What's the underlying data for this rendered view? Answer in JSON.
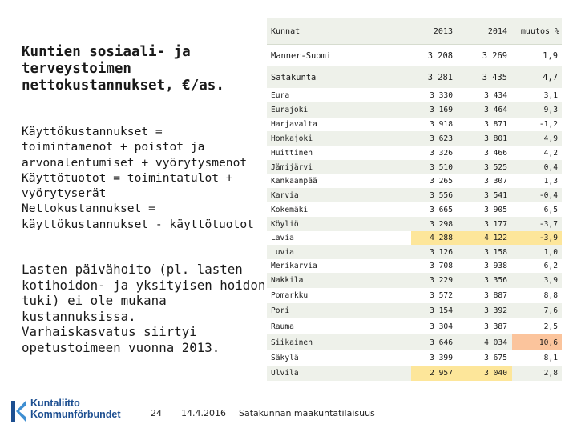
{
  "title": [
    "Kuntien sosiaali- ja",
    "terveystoimen",
    "nettokustannukset, €/as."
  ],
  "definitions": [
    "Käyttökustannukset =",
    "toimintamenot + poistot ja",
    "arvonalentumiset + vyörytysmenot",
    "Käyttötuotot = toimintatulot +",
    "vyörytyserät",
    "Nettokustannukset =",
    "käyttökustannukset - käyttötuotot"
  ],
  "note": [
    "Lasten päivähoito (pl. lasten",
    "kotihoidon- ja yksityisen hoidon",
    "tuki) ei ole mukana",
    "kustannuksissa.",
    "Varhaiskasvatus siirtyi",
    "opetustoimeen vuonna 2013."
  ],
  "table": {
    "headers": {
      "name": "Kunnat",
      "y2013": "2013",
      "y2014": "2014",
      "change": "muutos %"
    },
    "rows": [
      {
        "name": "Manner-Suomi",
        "y2013": "3 208",
        "y2014": "3 269",
        "change": "1,9",
        "big": true
      },
      {
        "name": "Satakunta",
        "y2013": "3 281",
        "y2014": "3 435",
        "change": "4,7",
        "big": true
      },
      {
        "name": "Eura",
        "y2013": "3 330",
        "y2014": "3 434",
        "change": "3,1"
      },
      {
        "name": "Eurajoki",
        "y2013": "3 169",
        "y2014": "3 464",
        "change": "9,3"
      },
      {
        "name": "Harjavalta",
        "y2013": "3 918",
        "y2014": "3 871",
        "change": "-1,2"
      },
      {
        "name": "Honkajoki",
        "y2013": "3 623",
        "y2014": "3 801",
        "change": "4,9"
      },
      {
        "name": "Huittinen",
        "y2013": "3 326",
        "y2014": "3 466",
        "change": "4,2"
      },
      {
        "name": "Jämijärvi",
        "y2013": "3 510",
        "y2014": "3 525",
        "change": "0,4"
      },
      {
        "name": "Kankaanpää",
        "y2013": "3 265",
        "y2014": "3 307",
        "change": "1,3"
      },
      {
        "name": "Karvia",
        "y2013": "3 556",
        "y2014": "3 541",
        "change": "-0,4"
      },
      {
        "name": "Kokemäki",
        "y2013": "3 665",
        "y2014": "3 905",
        "change": "6,5"
      },
      {
        "name": "Köyliö",
        "y2013": "3 298",
        "y2014": "3 177",
        "change": "-3,7"
      },
      {
        "name": "Lavia",
        "y2013": "4 288",
        "y2014": "4 122",
        "change": "-3,9",
        "hl13": "yellow",
        "hl14": "yellow",
        "hlch": "yellow"
      },
      {
        "name": "Luvia",
        "y2013": "3 126",
        "y2014": "3 158",
        "change": "1,0"
      },
      {
        "name": "Merikarvia",
        "y2013": "3 708",
        "y2014": "3 938",
        "change": "6,2"
      },
      {
        "name": "Nakkila",
        "y2013": "3 229",
        "y2014": "3 356",
        "change": "3,9"
      },
      {
        "name": "Pomarkku",
        "y2013": "3 572",
        "y2014": "3 887",
        "change": "8,8"
      },
      {
        "name": "Pori",
        "y2013": "3 154",
        "y2014": "3 392",
        "change": "7,6"
      },
      {
        "name": "Rauma",
        "y2013": "3 304",
        "y2014": "3 387",
        "change": "2,5"
      },
      {
        "name": "Siikainen",
        "y2013": "3 646",
        "y2014": "4 034",
        "change": "10,6",
        "hlch": "orange"
      },
      {
        "name": "Säkylä",
        "y2013": "3 399",
        "y2014": "3 675",
        "change": "8,1"
      },
      {
        "name": "Ulvila",
        "y2013": "2 957",
        "y2014": "3 040",
        "change": "2,8",
        "hl13": "yellow",
        "hl14": "yellow"
      }
    ]
  },
  "footer": {
    "page": "24",
    "date": "14.4.2016",
    "source": "Satakunnan maakuntatilaisuus",
    "logo_line1": "Kuntaliitto",
    "logo_line2": "Kommunförbundet"
  },
  "colors": {
    "row_shade": "#eef1ea",
    "highlight_yellow": "#fde69a",
    "highlight_orange": "#fbc49c",
    "logo_blue": "#1d4f91"
  }
}
